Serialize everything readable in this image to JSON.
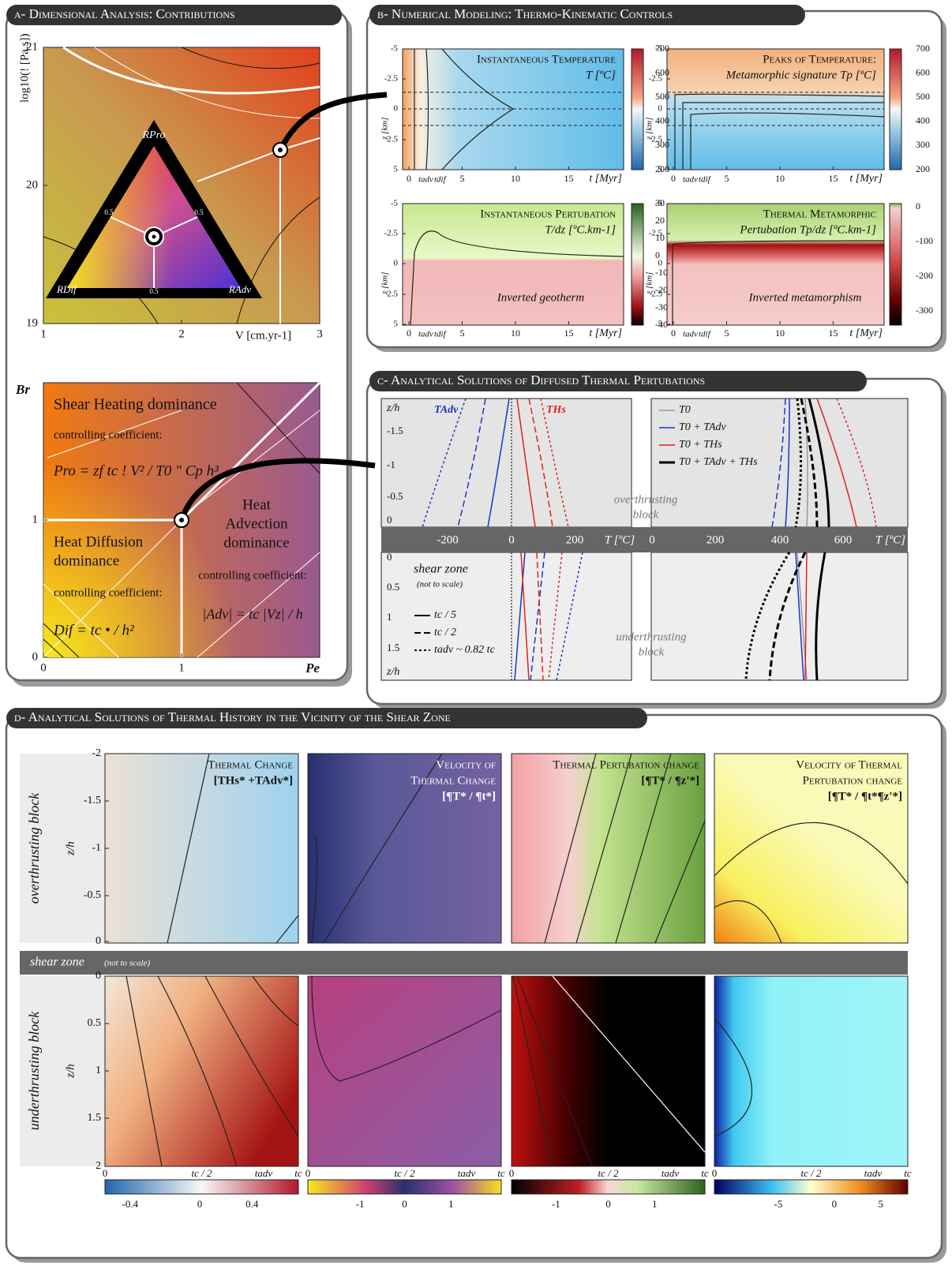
{
  "panel_a": {
    "title": "a- Dimensional Analysis: Contributions",
    "top_plot": {
      "y_label": "log10(! [Pa.s])",
      "y_ticks": [
        "21",
        "20",
        "19"
      ],
      "x_ticks": [
        "1",
        "2",
        "3"
      ],
      "x_label": "V [cm.yr-1]",
      "triangle": {
        "top": "RPro",
        "left": "RDif",
        "right": "RAdv",
        "edge_ticks": [
          "0.5",
          "0.5",
          "0.5"
        ]
      }
    },
    "bottom_plot": {
      "y_label": "Br",
      "x_label": "Pe",
      "y_ticks": [
        "0",
        "1"
      ],
      "x_ticks": [
        "0",
        "1"
      ],
      "shear_heating": {
        "name": [
          "Shear Heating dominance"
        ],
        "note": "controlling coefficient:",
        "formula": "Pro = zf tc ! V² / T0 \" Cp h³"
      },
      "heat_diffusion": {
        "name": [
          "Heat Diffusion",
          "dominance"
        ],
        "note": "controlling coefficient:",
        "formula": "Dif = tc • / h²"
      },
      "heat_advection": {
        "name": [
          "Heat",
          "Advection",
          "dominance"
        ],
        "note": "controlling coefficient:",
        "formula": "|Adv| = tc |Vz| / h"
      }
    }
  },
  "panel_b": {
    "title": "b- Numerical Modeling: Thermo-Kinematic Controls",
    "y_label": "z [km]",
    "y_ticks": [
      "-5",
      "-2.5",
      "0",
      "2.5",
      "5"
    ],
    "x_ticks": [
      "0",
      "5",
      "10",
      "15"
    ],
    "x_label": "t [Myr]",
    "markers": [
      "tadv",
      "tdif"
    ],
    "plots": [
      {
        "title": [
          "Instantaneous Temperature",
          "T [ºC]"
        ],
        "colorbar_ticks": [
          "700",
          "600",
          "500",
          "400",
          "300",
          "200"
        ]
      },
      {
        "title": [
          "Peaks of Temperature:",
          "Metamorphic signature Tp [ºC]"
        ],
        "colorbar_ticks": [
          "700",
          "600",
          "500",
          "400",
          "300",
          "200"
        ]
      },
      {
        "title": [
          "Instantaneous Pertubation",
          "T/dz [ºC.km-1]"
        ],
        "annotation": "Inverted geotherm",
        "colorbar_ticks": [
          "30",
          "20",
          "10",
          "0",
          "-10",
          "-20",
          "-30",
          "-40"
        ]
      },
      {
        "title": [
          "Thermal Metamorphic",
          "Pertubation Tp/dz [ºC.km-1]"
        ],
        "annotation": "Inverted metamorphism",
        "colorbar_ticks": [
          "0",
          "-100",
          "-200",
          "-300"
        ]
      }
    ]
  },
  "panel_c": {
    "title": "c- Analytical Solutions of Diffused Thermal Pertubations",
    "y_label": "z/h",
    "top_y_ticks": [
      "-1.5",
      "-1",
      "-0.5",
      "0"
    ],
    "bottom_y_ticks": [
      "0",
      "0.5",
      "1",
      "1.5"
    ],
    "left_x_ticks": [
      "-200",
      "0",
      "200"
    ],
    "right_x_ticks": [
      "0",
      "200",
      "400",
      "600"
    ],
    "x_label": "T [ºC]",
    "curve_labels": [
      "TAdv",
      "THs"
    ],
    "legend_series": [
      "T0",
      "T0 + TAdv",
      "T0 + THs",
      "T0 + TAdv + THs"
    ],
    "legend_times": [
      "tc / 5",
      "tc / 2",
      "tadv ~ 0.82 tc"
    ],
    "overthrusting": [
      "overthrusting",
      "block"
    ],
    "underthrusting": [
      "underthrusting",
      "block"
    ],
    "shear_zone": "shear zone",
    "shear_zone_note": "(not to scale)"
  },
  "panel_d": {
    "title": "d- Analytical Solutions of Thermal History in the Vicinity of the Shear Zone",
    "row_labels": [
      "overthrusting block",
      "underthrusting block"
    ],
    "shear_zone": "shear zone",
    "shear_zone_note": "(not to scale)",
    "y_label": "z/h",
    "top_y_ticks": [
      "-2",
      "-1.5",
      "-1",
      "-0.5",
      "0"
    ],
    "bottom_y_ticks": [
      "0",
      "0.5",
      "1",
      "1.5",
      "2"
    ],
    "x_ticks": [
      "0",
      "tc / 2",
      "tadv",
      "tc"
    ],
    "plots": [
      {
        "title": [
          "Thermal Change",
          "[THs* +TAdv*]"
        ],
        "colorbar_ticks": [
          "-0.4",
          "0",
          "0.4"
        ]
      },
      {
        "title": [
          "Velocity of",
          "Thermal Change",
          "[¶T* / ¶t*]"
        ],
        "colorbar_ticks": [
          "-1",
          "0",
          "1"
        ]
      },
      {
        "title": [
          "Thermal Pertubation change",
          "[¶T* / ¶z'*]"
        ],
        "colorbar_ticks": [
          "-1",
          "0",
          "1"
        ]
      },
      {
        "title": [
          "Velocity of Thermal",
          "Pertubation change",
          "[¶T* / ¶t*¶z'*]"
        ],
        "colorbar_ticks": [
          "-5",
          "0",
          "5"
        ]
      }
    ]
  }
}
